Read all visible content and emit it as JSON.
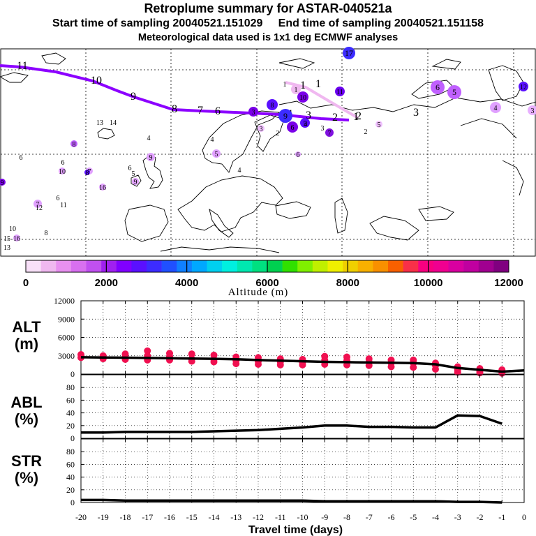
{
  "header": {
    "title": "Retroplume summary for ASTAR-040521a",
    "sampling_line": "Start time of sampling 20040521.151029     End time of sampling 20040521.151158",
    "met_line": "Meteorological data used is 1x1 deg ECMWF analyses"
  },
  "map": {
    "main_track_labels": [
      "11",
      "10",
      "9",
      "8",
      "7",
      "6",
      "5",
      "4",
      "3",
      "2",
      "1"
    ],
    "secondary_track_labels": [
      "1",
      "1",
      "2",
      "3"
    ],
    "markers": [
      {
        "label": "1",
        "color": "#f0b8f0"
      },
      {
        "label": "1",
        "color": "#ffffff"
      },
      {
        "label": "10",
        "color": "#7a00e8"
      },
      {
        "label": "11",
        "color": "#6a00f0"
      },
      {
        "label": "12",
        "color": "#5a10ff"
      },
      {
        "label": "3",
        "color": "#7a00e8"
      },
      {
        "label": "8",
        "color": "#5a10ff"
      },
      {
        "label": "9",
        "color": "#3c2cff"
      },
      {
        "label": "6",
        "color": "#c060ff"
      },
      {
        "label": "5",
        "color": "#c060ff"
      },
      {
        "label": "4",
        "color": "#e0a0ff"
      },
      {
        "label": "3",
        "color": "#e8b0ff"
      },
      {
        "label": "3",
        "color": "#f0c0ff"
      },
      {
        "label": "2",
        "color": "#f0c0ff"
      },
      {
        "label": "2",
        "color": "#ffffff"
      },
      {
        "label": "6",
        "color": "#7a00e8"
      },
      {
        "label": "5",
        "color": "#5a10ff"
      },
      {
        "label": "7",
        "color": "#8010e0"
      },
      {
        "label": "9",
        "color": "#e0a0ff"
      },
      {
        "label": "4",
        "color": "#e0a0ff"
      },
      {
        "label": "3",
        "color": "#ffffff"
      },
      {
        "label": "4",
        "color": "#ffffff"
      },
      {
        "label": "5",
        "color": "#e0a0ff"
      },
      {
        "label": "4",
        "color": "#ffffff"
      },
      {
        "label": "5",
        "color": "#f0c0ff"
      },
      {
        "label": "6",
        "color": "#e0a0ff"
      },
      {
        "label": "4",
        "color": "#ffffff"
      },
      {
        "label": "13",
        "color": "#ffffff"
      },
      {
        "label": "14",
        "color": "#ffffff"
      },
      {
        "label": "8",
        "color": "#c060ff"
      },
      {
        "label": "6",
        "color": "#ffffff"
      },
      {
        "label": "6",
        "color": "#ffffff"
      },
      {
        "label": "10",
        "color": "#e0a0ff"
      },
      {
        "label": "7",
        "color": "#e0a0ff"
      },
      {
        "label": "8",
        "color": "#5a10ff"
      },
      {
        "label": "16",
        "color": "#e0a0ff"
      },
      {
        "label": "6",
        "color": "#ffffff"
      },
      {
        "label": "5",
        "color": "#ffffff"
      },
      {
        "label": "9",
        "color": "#e0a0ff"
      },
      {
        "label": "9",
        "color": "#7a00e8"
      },
      {
        "label": "7",
        "color": "#e0a0ff"
      },
      {
        "label": "12",
        "color": "#e0a0ff"
      },
      {
        "label": "6",
        "color": "#ffffff"
      },
      {
        "label": "11",
        "color": "#ffffff"
      },
      {
        "label": "10",
        "color": "#ffffff"
      },
      {
        "label": "8",
        "color": "#ffffff"
      },
      {
        "label": "15",
        "color": "#ffffff"
      },
      {
        "label": "16",
        "color": "#e0a0ff"
      },
      {
        "label": "13",
        "color": "#ffffff"
      },
      {
        "label": "17",
        "color": "#3c2cff"
      }
    ]
  },
  "colorbar": {
    "colors": [
      "#f8e0f8",
      "#f0b8f0",
      "#e890f0",
      "#d870f0",
      "#c050f0",
      "#a020f0",
      "#8000ff",
      "#5a10ff",
      "#3c2cff",
      "#2050ff",
      "#1080ff",
      "#00a8ff",
      "#00d0f0",
      "#00f0e0",
      "#00e8b0",
      "#00e080",
      "#00d050",
      "#30e000",
      "#80f000",
      "#c0f000",
      "#f0f000",
      "#f0d000",
      "#f8b000",
      "#f89000",
      "#f86000",
      "#f83048",
      "#f80080",
      "#f00090",
      "#d800a0",
      "#c000a0",
      "#a00090",
      "#800080"
    ],
    "tick_labels": [
      "0",
      "2000",
      "4000",
      "6000",
      "8000",
      "10000",
      "12000"
    ],
    "label": "Altitude (m)"
  },
  "chart_data": [
    {
      "type": "line",
      "panel": "ALT",
      "ylabel": "ALT\n(m)",
      "ylabel_lines": [
        "ALT",
        "(m)"
      ],
      "ylim": [
        0,
        12000
      ],
      "yticks": [
        0,
        3000,
        6000,
        9000,
        12000
      ],
      "ytick_labels": [
        "0",
        "3000",
        "6000",
        "9000",
        "12000"
      ],
      "x": [
        -20,
        -19,
        -18,
        -17,
        -16,
        -15,
        -14,
        -13,
        -12,
        -11,
        -10,
        -9,
        -8,
        -7,
        -6,
        -5,
        -4,
        -3,
        -2,
        -1,
        0
      ],
      "series": [
        {
          "name": "mean altitude",
          "values": [
            2750,
            2720,
            2680,
            2640,
            2600,
            2550,
            2500,
            2430,
            2300,
            2200,
            2100,
            2000,
            1950,
            1900,
            1850,
            1800,
            1600,
            1000,
            700,
            400,
            600
          ]
        }
      ],
      "scatter_color": "#f01050",
      "scatter": [
        {
          "x": -20,
          "ys": [
            3200,
            2700
          ]
        },
        {
          "x": -19,
          "ys": [
            3000,
            2500
          ]
        },
        {
          "x": -18,
          "ys": [
            3300,
            2800,
            2400
          ]
        },
        {
          "x": -17,
          "ys": [
            3800,
            3000,
            2300
          ]
        },
        {
          "x": -16,
          "ys": [
            3400,
            2900,
            2300
          ]
        },
        {
          "x": -15,
          "ys": [
            3300,
            2500,
            2100
          ]
        },
        {
          "x": -14,
          "ys": [
            3100,
            2400,
            2000
          ]
        },
        {
          "x": -13,
          "ys": [
            2800,
            2200,
            1700
          ]
        },
        {
          "x": -12,
          "ys": [
            2700,
            2100,
            1600
          ]
        },
        {
          "x": -11,
          "ys": [
            2500,
            2000,
            1500
          ]
        },
        {
          "x": -10,
          "ys": [
            2400,
            1900,
            1500
          ]
        },
        {
          "x": -9,
          "ys": [
            2900,
            2300,
            1600
          ]
        },
        {
          "x": -8,
          "ys": [
            2800,
            2200,
            1500
          ]
        },
        {
          "x": -7,
          "ys": [
            2500,
            2000,
            1400
          ]
        },
        {
          "x": -6,
          "ys": [
            2300,
            1800,
            1200
          ]
        },
        {
          "x": -5,
          "ys": [
            2300,
            1800,
            1100
          ]
        },
        {
          "x": -4,
          "ys": [
            1800,
            1400,
            800
          ]
        },
        {
          "x": -3,
          "ys": [
            1200,
            700,
            300
          ]
        },
        {
          "x": -2,
          "ys": [
            900,
            500,
            200
          ]
        },
        {
          "x": -1,
          "ys": [
            700,
            400,
            150
          ]
        }
      ]
    },
    {
      "type": "line",
      "panel": "ABL",
      "ylabel": "ABL\n(%)",
      "ylabel_lines": [
        "ABL",
        "(%)"
      ],
      "ylim": [
        0,
        100
      ],
      "yticks": [
        0,
        20,
        40,
        60,
        80
      ],
      "ytick_labels": [
        "0",
        "20",
        "40",
        "60",
        "80"
      ],
      "x": [
        -20,
        -19,
        -18,
        -17,
        -16,
        -15,
        -14,
        -13,
        -12,
        -11,
        -10,
        -9,
        -8,
        -7,
        -6,
        -5,
        -4,
        -3,
        -2,
        -1
      ],
      "series": [
        {
          "name": "fraction in ABL",
          "values": [
            9,
            9,
            10,
            10,
            10,
            10,
            11,
            12,
            13,
            15,
            17,
            20,
            20,
            18,
            18,
            17,
            17,
            36,
            35,
            23
          ]
        }
      ]
    },
    {
      "type": "line",
      "panel": "STR",
      "ylabel": "STR\n(%)",
      "ylabel_lines": [
        "STR",
        "(%)"
      ],
      "ylim": [
        0,
        100
      ],
      "yticks": [
        0,
        20,
        40,
        60,
        80
      ],
      "ytick_labels": [
        "0",
        "20",
        "40",
        "60",
        "80"
      ],
      "x": [
        -20,
        -19,
        -18,
        -17,
        -16,
        -15,
        -14,
        -13,
        -12,
        -11,
        -10,
        -9,
        -8,
        -7,
        -6,
        -5,
        -4,
        -3,
        -2,
        -1
      ],
      "series": [
        {
          "name": "fraction in stratosphere",
          "values": [
            4,
            4,
            3,
            3,
            3,
            3,
            3,
            3,
            3,
            3,
            3,
            2,
            2,
            2,
            2,
            2,
            2,
            1,
            1,
            0
          ]
        }
      ],
      "xlabel": "Travel time (days)",
      "xlim": [
        -20,
        0
      ],
      "xticks": [
        -20,
        -19,
        -18,
        -17,
        -16,
        -15,
        -14,
        -13,
        -12,
        -11,
        -10,
        -9,
        -8,
        -7,
        -6,
        -5,
        -4,
        -3,
        -2,
        -1,
        0
      ],
      "xtick_labels": [
        "-20",
        "-19",
        "-18",
        "-17",
        "-16",
        "-15",
        "-14",
        "-13",
        "-12",
        "-11",
        "-10",
        "-9",
        "-8",
        "-7",
        "-6",
        "-5",
        "-4",
        "-3",
        "-2",
        "-1",
        "0"
      ]
    }
  ]
}
